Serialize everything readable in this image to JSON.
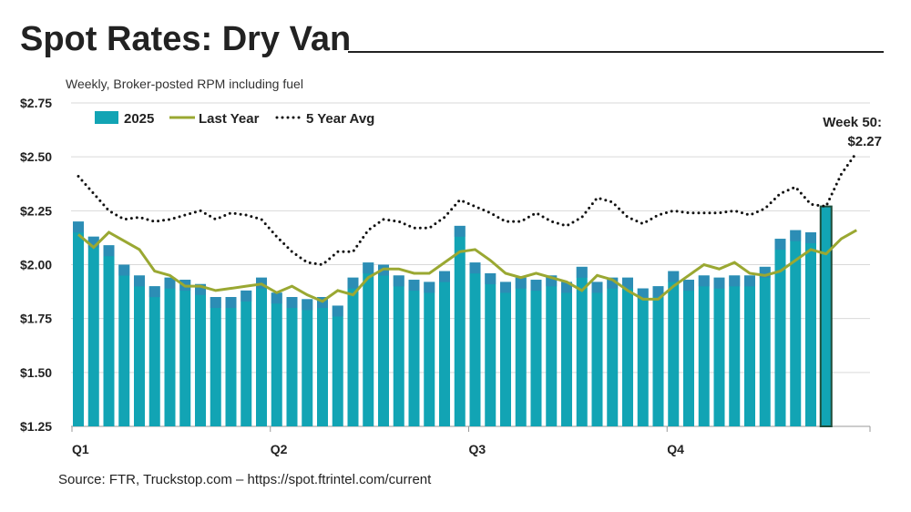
{
  "title": "Spot Rates: Dry Van",
  "subtitle": "Weekly, Broker-posted RPM including fuel",
  "source": "Source: FTR, Truckstop.com – https://spot.ftrintel.com/current",
  "colors": {
    "bars": "#12a4b4",
    "bar_edge": "#3d7fb5",
    "last_year": "#9aa832",
    "five_year": "#111111",
    "highlight_edge": "#1e4d3a"
  },
  "chart_data": {
    "type": "bar",
    "ylim": [
      1.25,
      2.75
    ],
    "yticks": [
      "$1.25",
      "$1.50",
      "$1.75",
      "$2.00",
      "$2.25",
      "$2.50",
      "$2.75"
    ],
    "yvals": [
      1.25,
      1.5,
      1.75,
      2.0,
      2.25,
      2.5,
      2.75
    ],
    "xticks": [
      "Q1",
      "Q2",
      "Q3",
      "Q4"
    ],
    "grid": true,
    "legend": "top-left",
    "annotation": {
      "line1": "Week 50:",
      "line2": "$2.27"
    },
    "series": [
      {
        "name": "2025",
        "type": "bar",
        "values": [
          2.2,
          2.13,
          2.09,
          2.0,
          1.95,
          1.9,
          1.94,
          1.93,
          1.91,
          1.85,
          1.85,
          1.88,
          1.94,
          1.87,
          1.85,
          1.84,
          1.85,
          1.81,
          1.94,
          2.01,
          2.0,
          1.95,
          1.93,
          1.92,
          1.97,
          2.18,
          2.01,
          1.96,
          1.92,
          1.94,
          1.93,
          1.95,
          1.92,
          1.99,
          1.92,
          1.94,
          1.94,
          1.89,
          1.9,
          1.97,
          1.93,
          1.95,
          1.94,
          1.95,
          1.95,
          1.99,
          2.12,
          2.16,
          2.15,
          2.27
        ]
      },
      {
        "name": "Last Year",
        "type": "line",
        "values": [
          2.14,
          2.08,
          2.15,
          2.11,
          2.07,
          1.97,
          1.95,
          1.9,
          1.9,
          1.88,
          1.89,
          1.9,
          1.91,
          1.87,
          1.9,
          1.86,
          1.83,
          1.88,
          1.86,
          1.94,
          1.98,
          1.98,
          1.96,
          1.96,
          2.01,
          2.06,
          2.07,
          2.02,
          1.96,
          1.94,
          1.96,
          1.94,
          1.92,
          1.88,
          1.95,
          1.93,
          1.88,
          1.84,
          1.84,
          1.9,
          1.95,
          2.0,
          1.98,
          2.01,
          1.96,
          1.95,
          1.97,
          2.02,
          2.07,
          2.05,
          2.12,
          2.16
        ]
      },
      {
        "name": "5 Year Avg",
        "type": "line",
        "values": [
          2.41,
          2.33,
          2.25,
          2.21,
          2.22,
          2.2,
          2.21,
          2.23,
          2.25,
          2.21,
          2.24,
          2.23,
          2.21,
          2.13,
          2.06,
          2.01,
          2.0,
          2.06,
          2.06,
          2.16,
          2.21,
          2.2,
          2.17,
          2.17,
          2.22,
          2.3,
          2.27,
          2.24,
          2.2,
          2.2,
          2.24,
          2.2,
          2.18,
          2.22,
          2.31,
          2.29,
          2.22,
          2.19,
          2.23,
          2.25,
          2.24,
          2.24,
          2.24,
          2.25,
          2.23,
          2.26,
          2.33,
          2.36,
          2.28,
          2.27,
          2.42,
          2.52
        ]
      }
    ]
  }
}
